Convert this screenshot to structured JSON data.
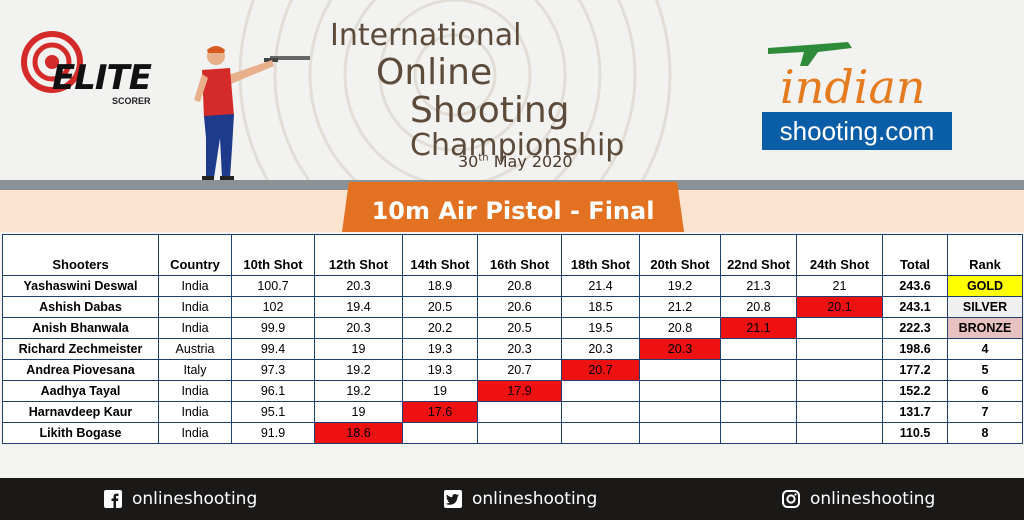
{
  "branding": {
    "elite_logo_text": "ELITE",
    "elite_logo_sub": "SCORER",
    "title_line1": "International",
    "title_line2": "Online",
    "title_line3": "Shooting",
    "title_line4": "Championship",
    "date_day": "30",
    "date_suffix": "th",
    "date_rest": " May 2020",
    "partner_logo_text": "indian",
    "partner_logo_box": "shooting.com"
  },
  "event": {
    "title": "10m Air Pistol - Final"
  },
  "table": {
    "headers": [
      "Shooters",
      "Country",
      "10th Shot",
      "12th Shot",
      "14th Shot",
      "16th Shot",
      "18th Shot",
      "20th Shot",
      "22nd Shot",
      "24th Shot",
      "Total",
      "Rank"
    ],
    "rows": [
      {
        "name": "Yashaswini Deswal",
        "country": "India",
        "shots": [
          "100.7",
          "20.3",
          "18.9",
          "20.8",
          "21.4",
          "19.2",
          "21.3",
          "21"
        ],
        "total": "243.6",
        "rank": "GOLD",
        "eliminated_at": -1
      },
      {
        "name": "Ashish Dabas",
        "country": "India",
        "shots": [
          "102",
          "19.4",
          "20.5",
          "20.6",
          "18.5",
          "21.2",
          "20.8",
          "20.1"
        ],
        "total": "243.1",
        "rank": "SILVER",
        "eliminated_at": 7
      },
      {
        "name": "Anish Bhanwala",
        "country": "India",
        "shots": [
          "99.9",
          "20.3",
          "20.2",
          "20.5",
          "19.5",
          "20.8",
          "21.1",
          ""
        ],
        "total": "222.3",
        "rank": "BRONZE",
        "eliminated_at": 6
      },
      {
        "name": "Richard Zechmeister",
        "country": "Austria",
        "shots": [
          "99.4",
          "19",
          "19.3",
          "20.3",
          "20.3",
          "20.3",
          "",
          ""
        ],
        "total": "198.6",
        "rank": "4",
        "eliminated_at": 5
      },
      {
        "name": "Andrea Piovesana",
        "country": "Italy",
        "shots": [
          "97.3",
          "19.2",
          "19.3",
          "20.7",
          "20.7",
          "",
          "",
          ""
        ],
        "total": "177.2",
        "rank": "5",
        "eliminated_at": 4
      },
      {
        "name": "Aadhya Tayal",
        "country": "India",
        "shots": [
          "96.1",
          "19.2",
          "19",
          "17.9",
          "",
          "",
          "",
          ""
        ],
        "total": "152.2",
        "rank": "6",
        "eliminated_at": 3
      },
      {
        "name": "Harnavdeep Kaur",
        "country": "India",
        "shots": [
          "95.1",
          "19",
          "17.6",
          "",
          "",
          "",
          "",
          ""
        ],
        "total": "131.7",
        "rank": "7",
        "eliminated_at": 2
      },
      {
        "name": "Likith Bogase",
        "country": "India",
        "shots": [
          "91.9",
          "18.6",
          "",
          "",
          "",
          "",
          "",
          ""
        ],
        "total": "110.5",
        "rank": "8",
        "eliminated_at": 1
      }
    ]
  },
  "footer": {
    "facebook": {
      "icon": "facebook-icon",
      "handle": "onlineshooting"
    },
    "twitter": {
      "icon": "twitter-icon",
      "handle": "onlineshooting"
    },
    "instagram": {
      "icon": "instagram-icon",
      "handle": "onlineshooting"
    }
  },
  "colors": {
    "accent_orange": "#e27222",
    "eliminated_red": "#ee1111",
    "gold": "#ffff00",
    "silver": "#f0f0f0",
    "bronze": "#e8c2c0",
    "partner_blue": "#0a5ea8"
  }
}
